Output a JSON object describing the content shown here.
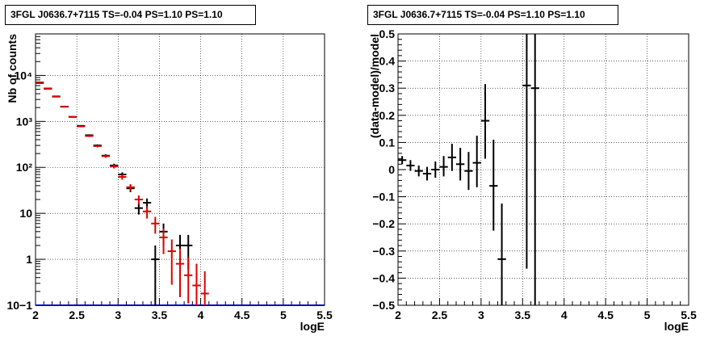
{
  "chart_data": [
    {
      "type": "scatter",
      "title": "3FGL J0636.7+7115 TS=-0.04 PS=1.10 PS=1.10",
      "xlabel": "logE",
      "ylabel": "Nb of counts",
      "xlim": [
        2,
        5.5
      ],
      "ylim": [
        0.1,
        80000
      ],
      "ylog": true,
      "grid": true,
      "xticks": [
        "2",
        "2.5",
        "3",
        "3.5",
        "4",
        "4.5",
        "5",
        "5.5"
      ],
      "yticks": [
        "10−1",
        "1",
        "10",
        "10²",
        "10³",
        "10⁴"
      ],
      "series": [
        {
          "color": "#000000",
          "points": [
            {
              "x": 2.05,
              "y": 7000,
              "ylo": 6900,
              "yhi": 7100
            },
            {
              "x": 2.15,
              "y": 5200,
              "ylo": 5100,
              "yhi": 5300
            },
            {
              "x": 2.25,
              "y": 3500,
              "ylo": 3440,
              "yhi": 3560
            },
            {
              "x": 2.35,
              "y": 2100,
              "ylo": 2055,
              "yhi": 2145
            },
            {
              "x": 2.45,
              "y": 1250,
              "ylo": 1215,
              "yhi": 1285
            },
            {
              "x": 2.55,
              "y": 800,
              "ylo": 772,
              "yhi": 828
            },
            {
              "x": 2.65,
              "y": 500,
              "ylo": 478,
              "yhi": 522
            },
            {
              "x": 2.75,
              "y": 300,
              "ylo": 283,
              "yhi": 317
            },
            {
              "x": 2.85,
              "y": 180,
              "ylo": 167,
              "yhi": 193
            },
            {
              "x": 2.95,
              "y": 110,
              "ylo": 100,
              "yhi": 120
            },
            {
              "x": 3.05,
              "y": 70,
              "ylo": 62,
              "yhi": 78
            },
            {
              "x": 3.15,
              "y": 35,
              "ylo": 29,
              "yhi": 41
            },
            {
              "x": 3.25,
              "y": 13,
              "ylo": 9.4,
              "yhi": 16.6
            },
            {
              "x": 3.35,
              "y": 17,
              "ylo": 12.9,
              "yhi": 21.1
            },
            {
              "x": 3.45,
              "y": 1,
              "ylo": 0.1,
              "yhi": 2
            },
            {
              "x": 3.55,
              "y": 4,
              "ylo": 2,
              "yhi": 6
            },
            {
              "x": 3.75,
              "y": 2,
              "ylo": 0.6,
              "yhi": 3.4
            },
            {
              "x": 3.85,
              "y": 2,
              "ylo": 0.6,
              "yhi": 3.4
            }
          ]
        },
        {
          "color": "#dd0000",
          "points": [
            {
              "x": 2.05,
              "y": 6800,
              "ylo": 6700,
              "yhi": 6900
            },
            {
              "x": 2.15,
              "y": 5100,
              "ylo": 5000,
              "yhi": 5200
            },
            {
              "x": 2.25,
              "y": 3450,
              "ylo": 3390,
              "yhi": 3510
            },
            {
              "x": 2.35,
              "y": 2080,
              "ylo": 2035,
              "yhi": 2125
            },
            {
              "x": 2.45,
              "y": 1260,
              "ylo": 1225,
              "yhi": 1295
            },
            {
              "x": 2.55,
              "y": 780,
              "ylo": 752,
              "yhi": 808
            },
            {
              "x": 2.65,
              "y": 480,
              "ylo": 458,
              "yhi": 502
            },
            {
              "x": 2.75,
              "y": 290,
              "ylo": 273,
              "yhi": 307
            },
            {
              "x": 2.85,
              "y": 175,
              "ylo": 162,
              "yhi": 188
            },
            {
              "x": 2.95,
              "y": 105,
              "ylo": 95,
              "yhi": 115
            },
            {
              "x": 3.05,
              "y": 62,
              "ylo": 54,
              "yhi": 70
            },
            {
              "x": 3.15,
              "y": 37,
              "ylo": 31,
              "yhi": 43
            },
            {
              "x": 3.25,
              "y": 20,
              "ylo": 15.5,
              "yhi": 24.5
            },
            {
              "x": 3.35,
              "y": 11,
              "ylo": 7.7,
              "yhi": 14.3
            },
            {
              "x": 3.45,
              "y": 6,
              "ylo": 3.6,
              "yhi": 8.4
            },
            {
              "x": 3.55,
              "y": 3,
              "ylo": 1.3,
              "yhi": 4.7
            },
            {
              "x": 3.65,
              "y": 1.5,
              "ylo": 0.28,
              "yhi": 2.7
            },
            {
              "x": 3.75,
              "y": 0.8,
              "ylo": 0.15,
              "yhi": 1.7
            },
            {
              "x": 3.85,
              "y": 0.45,
              "ylo": 0.11,
              "yhi": 1.1
            },
            {
              "x": 3.95,
              "y": 0.27,
              "ylo": 0.1,
              "yhi": 0.8
            },
            {
              "x": 4.05,
              "y": 0.18,
              "ylo": 0.1,
              "yhi": 0.55
            }
          ]
        }
      ],
      "baseline": {
        "y": 0.1,
        "color": "#0000cc"
      }
    },
    {
      "type": "scatter",
      "title": "3FGL J0636.7+7115 TS=-0.04 PS=1.10 PS=1.10",
      "xlabel": "logE",
      "ylabel": "(data-model)/model",
      "xlim": [
        2,
        5.5
      ],
      "ylim": [
        -0.5,
        0.5
      ],
      "ylog": false,
      "grid": true,
      "xticks": [
        "2",
        "2.5",
        "3",
        "3.5",
        "4",
        "4.5",
        "5",
        "5.5"
      ],
      "yticks": [
        "−0.5",
        "−0.4",
        "−0.3",
        "−0.2",
        "−0.1",
        "0",
        "0.1",
        "0.2",
        "0.3",
        "0.4",
        "0.5"
      ],
      "series": [
        {
          "color": "#000000",
          "points": [
            {
              "x": 2.05,
              "y": 0.035,
              "ylo": 0.02,
              "yhi": 0.05
            },
            {
              "x": 2.15,
              "y": 0.015,
              "ylo": -0.005,
              "yhi": 0.035
            },
            {
              "x": 2.25,
              "y": -0.005,
              "ylo": -0.025,
              "yhi": 0.015
            },
            {
              "x": 2.35,
              "y": -0.015,
              "ylo": -0.04,
              "yhi": 0.01
            },
            {
              "x": 2.45,
              "y": 0.0,
              "ylo": -0.03,
              "yhi": 0.03
            },
            {
              "x": 2.55,
              "y": 0.01,
              "ylo": -0.025,
              "yhi": 0.05
            },
            {
              "x": 2.65,
              "y": 0.045,
              "ylo": -0.005,
              "yhi": 0.095
            },
            {
              "x": 2.75,
              "y": 0.02,
              "ylo": -0.04,
              "yhi": 0.08
            },
            {
              "x": 2.85,
              "y": -0.005,
              "ylo": -0.075,
              "yhi": 0.065
            },
            {
              "x": 2.95,
              "y": 0.025,
              "ylo": -0.065,
              "yhi": 0.125
            },
            {
              "x": 3.05,
              "y": 0.18,
              "ylo": 0.04,
              "yhi": 0.315
            },
            {
              "x": 3.15,
              "y": -0.06,
              "ylo": -0.225,
              "yhi": 0.11
            },
            {
              "x": 3.25,
              "y": -0.33,
              "ylo": -0.5,
              "yhi": -0.125
            },
            {
              "x": 3.55,
              "y": 0.31,
              "ylo": -0.365,
              "yhi": 0.5
            },
            {
              "x": 3.65,
              "y": 0.3,
              "ylo": -0.5,
              "yhi": 0.5
            }
          ]
        }
      ]
    }
  ]
}
